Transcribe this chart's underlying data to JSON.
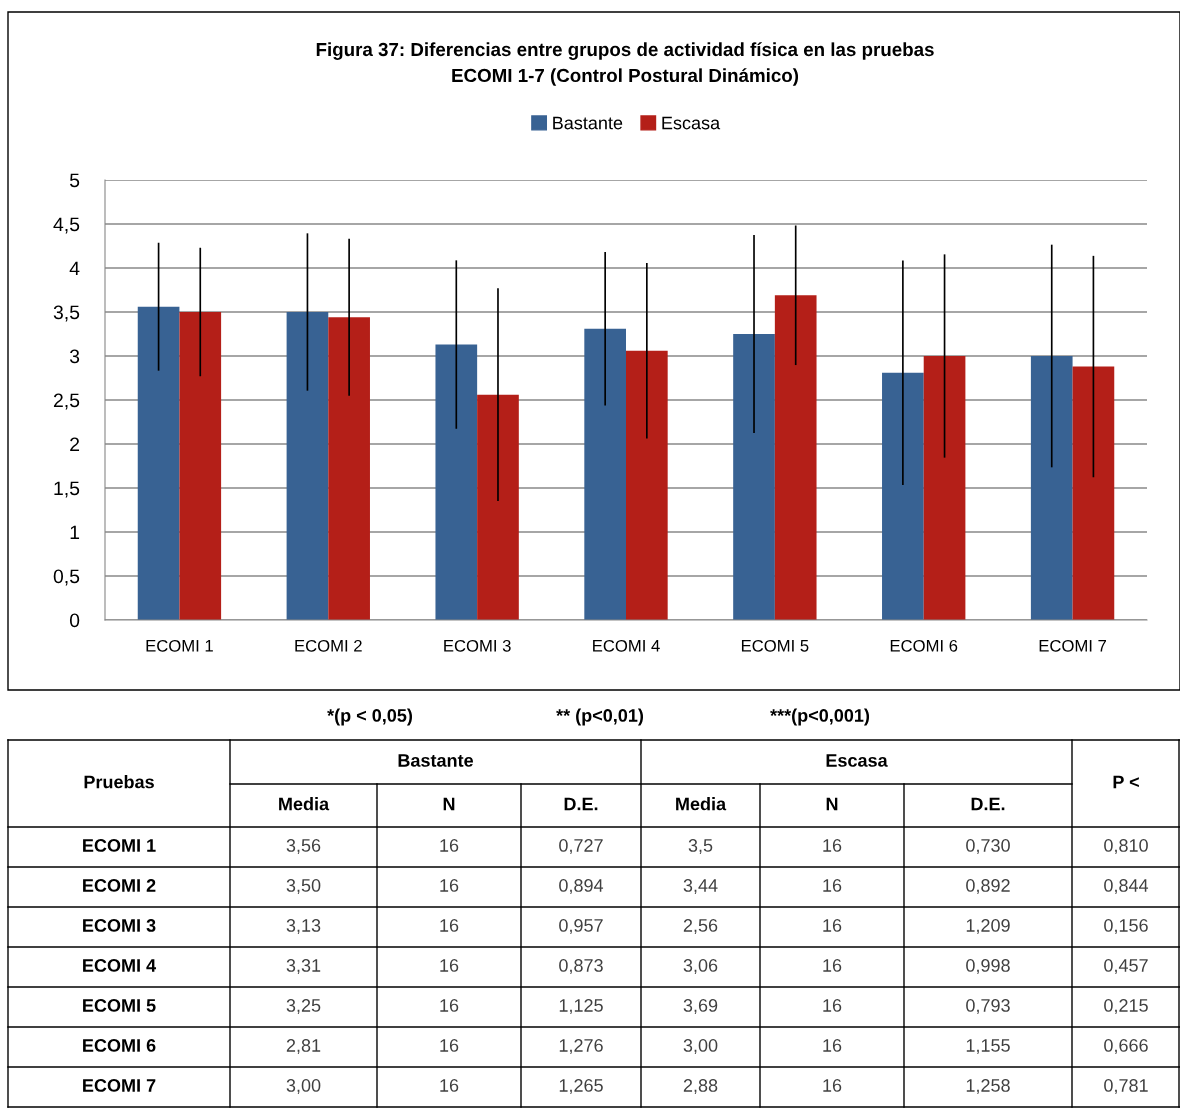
{
  "chart_data": [
    {
      "type": "bar",
      "title": "Figura 37: Diferencias entre grupos de actividad física en las pruebas\nECOMI 1-7 (Control Postural Dinámico)",
      "categories": [
        "ECOMI 1",
        "ECOMI 2",
        "ECOMI 3",
        "ECOMI 4",
        "ECOMI 5",
        "ECOMI 6",
        "ECOMI 7"
      ],
      "series": [
        {
          "name": "Bastante",
          "color": "#386293",
          "values": [
            3.56,
            3.5,
            3.13,
            3.31,
            3.25,
            2.81,
            3.0
          ],
          "errors": [
            0.727,
            0.894,
            0.957,
            0.873,
            1.125,
            1.276,
            1.265
          ]
        },
        {
          "name": "Escasa",
          "color": "#b41f18",
          "values": [
            3.5,
            3.44,
            2.56,
            3.06,
            3.69,
            3.0,
            2.88
          ],
          "errors": [
            0.73,
            0.892,
            1.209,
            0.998,
            0.793,
            1.155,
            1.258
          ]
        }
      ],
      "ylim": [
        0,
        5
      ],
      "yticks": [
        {
          "value": 0,
          "label": "0"
        },
        {
          "value": 0.5,
          "label": "0,5"
        },
        {
          "value": 1,
          "label": "1"
        },
        {
          "value": 1.5,
          "label": "1,5"
        },
        {
          "value": 2,
          "label": "2"
        },
        {
          "value": 2.5,
          "label": "2,5"
        },
        {
          "value": 3,
          "label": "3"
        },
        {
          "value": 3.5,
          "label": "3,5"
        },
        {
          "value": 4,
          "label": "4"
        },
        {
          "value": 4.5,
          "label": "4,5"
        },
        {
          "value": 5,
          "label": "5"
        }
      ],
      "grid": "y",
      "legend": "top"
    },
    {
      "type": "other",
      "annotations": [
        "*(p < 0,05)",
        "** (p<0,01)",
        "***(p<0,001)",
        "Pruebas",
        "Bastante",
        "Escasa",
        "P <",
        "Media",
        "N",
        "D.E.",
        "Media",
        "N",
        "D.E.",
        "ECOMI 1",
        "3,56",
        "16",
        "0,727",
        "3,5",
        "16",
        "0,730",
        "0,810",
        "ECOMI 2",
        "3,50",
        "16",
        "0,894",
        "3,44",
        "16",
        "0,892",
        "0,844",
        "ECOMI 3",
        "3,13",
        "16",
        "0,957",
        "2,56",
        "16",
        "1,209",
        "0,156",
        "ECOMI 4",
        "3,31",
        "16",
        "0,873",
        "3,06",
        "16",
        "0,998",
        "0,457",
        "ECOMI 5",
        "3,25",
        "16",
        "1,125",
        "3,69",
        "16",
        "0,793",
        "0,215",
        "ECOMI 6",
        "2,81",
        "16",
        "1,276",
        "3,00",
        "16",
        "1,155",
        "0,666",
        "ECOMI 7",
        "3,00",
        "16",
        "1,265",
        "2,88",
        "16",
        "1,258",
        "0,781"
      ]
    }
  ]
}
